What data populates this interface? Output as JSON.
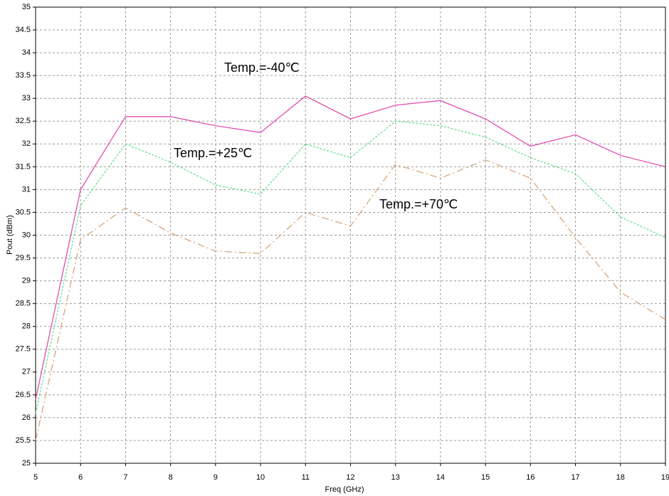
{
  "chart_data": {
    "type": "line",
    "x_label": "Freq (GHz)",
    "y_label": "Pout (dBm)",
    "x": [
      5,
      6,
      7,
      8,
      9,
      10,
      11,
      12,
      13,
      14,
      15,
      16,
      17,
      18,
      19
    ],
    "series": [
      {
        "name": "Temp.=-40℃",
        "color": "#e040a8",
        "style": "solid",
        "values": [
          26.4,
          31.0,
          32.6,
          32.6,
          32.4,
          32.25,
          33.05,
          32.55,
          32.85,
          32.95,
          32.55,
          31.95,
          32.2,
          31.75,
          31.5
        ]
      },
      {
        "name": "Temp.=+25℃",
        "color": "#5ee08a",
        "style": "dotted",
        "values": [
          26.1,
          30.65,
          32.0,
          31.6,
          31.1,
          30.9,
          32.0,
          31.7,
          32.5,
          32.4,
          32.15,
          31.7,
          31.35,
          30.4,
          29.95
        ]
      },
      {
        "name": "Temp.=+70℃",
        "color": "#d4a070",
        "style": "dashdot",
        "values": [
          25.5,
          29.9,
          30.6,
          30.05,
          29.65,
          29.6,
          30.5,
          30.2,
          31.55,
          31.25,
          31.65,
          31.25,
          29.95,
          28.75,
          28.15
        ]
      }
    ],
    "xlim": [
      5,
      19
    ],
    "xticks": [
      5,
      6,
      7,
      8,
      9,
      10,
      11,
      12,
      13,
      14,
      15,
      16,
      17,
      18,
      19
    ],
    "ylim": [
      25,
      35
    ],
    "yticks": [
      25,
      25.5,
      26,
      26.5,
      27,
      27.5,
      28,
      28.5,
      29,
      29.5,
      30,
      30.5,
      31,
      31.5,
      32,
      32.5,
      33,
      33.5,
      34,
      34.5,
      35
    ],
    "grid": true
  }
}
